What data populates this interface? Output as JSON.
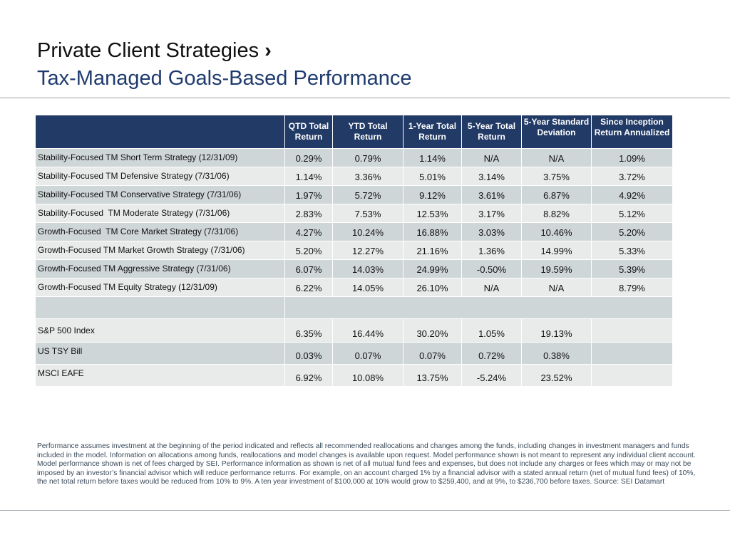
{
  "header": {
    "title": "Private Client Strategies",
    "title_marker": "›",
    "subtitle": "Tax-Managed Goals-Based Performance"
  },
  "table": {
    "columns": [
      "QTD Total Return",
      "YTD Total Return",
      "1-Year Total Return",
      "5-Year Total Return",
      "5-Year Standard Deviation",
      "Since Inception Return Annualized"
    ],
    "strategies": [
      {
        "name": "Stability-Focused TM Short Term Strategy (12/31/09)",
        "values": [
          "0.29%",
          "0.79%",
          "1.14%",
          "N/A",
          "N/A",
          "1.09%"
        ]
      },
      {
        "name": "Stability-Focused TM Defensive Strategy (7/31/06)",
        "values": [
          "1.14%",
          "3.36%",
          "5.01%",
          "3.14%",
          "3.75%",
          "3.72%"
        ]
      },
      {
        "name": "Stability-Focused TM Conservative Strategy (7/31/06)",
        "values": [
          "1.97%",
          "5.72%",
          "9.12%",
          "3.61%",
          "6.87%",
          "4.92%"
        ]
      },
      {
        "name": "Stability-Focused  TM Moderate Strategy (7/31/06)",
        "values": [
          "2.83%",
          "7.53%",
          "12.53%",
          "3.17%",
          "8.82%",
          "5.12%"
        ]
      },
      {
        "name": "Growth-Focused  TM Core Market Strategy (7/31/06)",
        "values": [
          "4.27%",
          "10.24%",
          "16.88%",
          "3.03%",
          "10.46%",
          "5.20%"
        ]
      },
      {
        "name": "Growth-Focused TM Market Growth Strategy (7/31/06)",
        "values": [
          "5.20%",
          "12.27%",
          "21.16%",
          "1.36%",
          "14.99%",
          "5.33%"
        ]
      },
      {
        "name": "Growth-Focused TM Aggressive Strategy (7/31/06)",
        "values": [
          "6.07%",
          "14.03%",
          "24.99%",
          "-0.50%",
          "19.59%",
          "5.39%"
        ]
      },
      {
        "name": "Growth-Focused TM Equity Strategy (12/31/09)",
        "values": [
          "6.22%",
          "14.05%",
          "26.10%",
          "N/A",
          "N/A",
          "8.79%"
        ]
      }
    ],
    "indices": [
      {
        "name": "S&P 500 Index",
        "values": [
          "6.35%",
          "16.44%",
          "30.20%",
          "1.05%",
          "19.13%",
          ""
        ]
      },
      {
        "name": "US TSY Bill",
        "values": [
          "0.03%",
          "0.07%",
          "0.07%",
          "0.72%",
          "0.38%",
          ""
        ]
      },
      {
        "name": "MSCI EAFE",
        "values": [
          "6.92%",
          "10.08%",
          "13.75%",
          "-5.24%",
          "23.52%",
          ""
        ]
      }
    ]
  },
  "footnote": "Performance assumes investment at the beginning of the period indicated and reflects all recommended reallocations and changes among the funds, including changes in investment managers and funds included in the model. Information on allocations among funds, reallocations and model changes is available upon request. Model performance shown is not meant to represent any individual client account. Model performance shown is net of fees charged by SEI. Performance information as shown is net of all mutual fund fees and expenses, but does not include any charges or fees which may or may not be imposed by an investor’s financial advisor which will reduce performance returns. For example, on an account charged 1% by a financial advisor with a stated annual return (net of mutual fund fees) of 10%, the net total return before taxes would be reduced from 10% to 9%. A ten year investment of $100,000 at 10% would grow to $259,400, and at 9%, to $236,700 before taxes. Source: SEI Datamart"
}
